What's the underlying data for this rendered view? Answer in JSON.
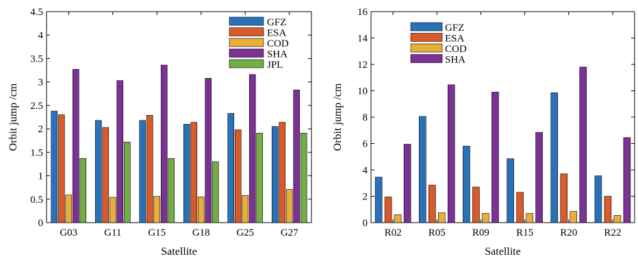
{
  "colors": {
    "GFZ": "#2a72b8",
    "ESA": "#d95a2b",
    "COD": "#e9ad3b",
    "SHA": "#7b3294",
    "JPL": "#74ac45"
  },
  "chart_data": [
    {
      "type": "bar",
      "categories": [
        "G03",
        "G11",
        "G15",
        "G18",
        "G25",
        "G27"
      ],
      "series": [
        {
          "name": "GFZ",
          "values": [
            2.38,
            2.18,
            2.18,
            2.1,
            2.33,
            2.05
          ]
        },
        {
          "name": "ESA",
          "values": [
            2.3,
            2.03,
            2.29,
            2.14,
            1.98,
            2.14
          ]
        },
        {
          "name": "COD",
          "values": [
            0.59,
            0.54,
            0.56,
            0.55,
            0.58,
            0.71
          ]
        },
        {
          "name": "SHA",
          "values": [
            3.27,
            3.03,
            3.36,
            3.08,
            3.16,
            2.83
          ]
        },
        {
          "name": "JPL",
          "values": [
            1.37,
            1.72,
            1.37,
            1.3,
            1.91,
            1.91
          ]
        }
      ],
      "title": "",
      "xlabel": "Satellite",
      "ylabel": "Orbit jump /cm",
      "ylim": [
        0,
        4.5
      ],
      "yticks": [
        "0",
        "0.5",
        "1",
        "1.5",
        "2",
        "2.5",
        "3",
        "3.5",
        "4",
        "4.5"
      ],
      "legend_position": "top-right",
      "grid": false
    },
    {
      "type": "bar",
      "categories": [
        "R02",
        "R05",
        "R09",
        "R15",
        "R20",
        "R22"
      ],
      "series": [
        {
          "name": "GFZ",
          "values": [
            3.45,
            8.05,
            5.8,
            4.85,
            9.85,
            3.55
          ]
        },
        {
          "name": "ESA",
          "values": [
            1.95,
            2.85,
            2.7,
            2.3,
            3.7,
            2.0
          ]
        },
        {
          "name": "COD",
          "values": [
            0.6,
            0.75,
            0.7,
            0.7,
            0.85,
            0.55
          ]
        },
        {
          "name": "SHA",
          "values": [
            5.95,
            10.45,
            9.9,
            6.85,
            11.8,
            6.45
          ]
        }
      ],
      "title": "",
      "xlabel": "Satellite",
      "ylabel": "Orbit jump /cm",
      "ylim": [
        0,
        16
      ],
      "yticks": [
        "0",
        "2",
        "4",
        "6",
        "8",
        "10",
        "12",
        "14",
        "16"
      ],
      "legend_position": "top-left",
      "grid": false
    }
  ]
}
